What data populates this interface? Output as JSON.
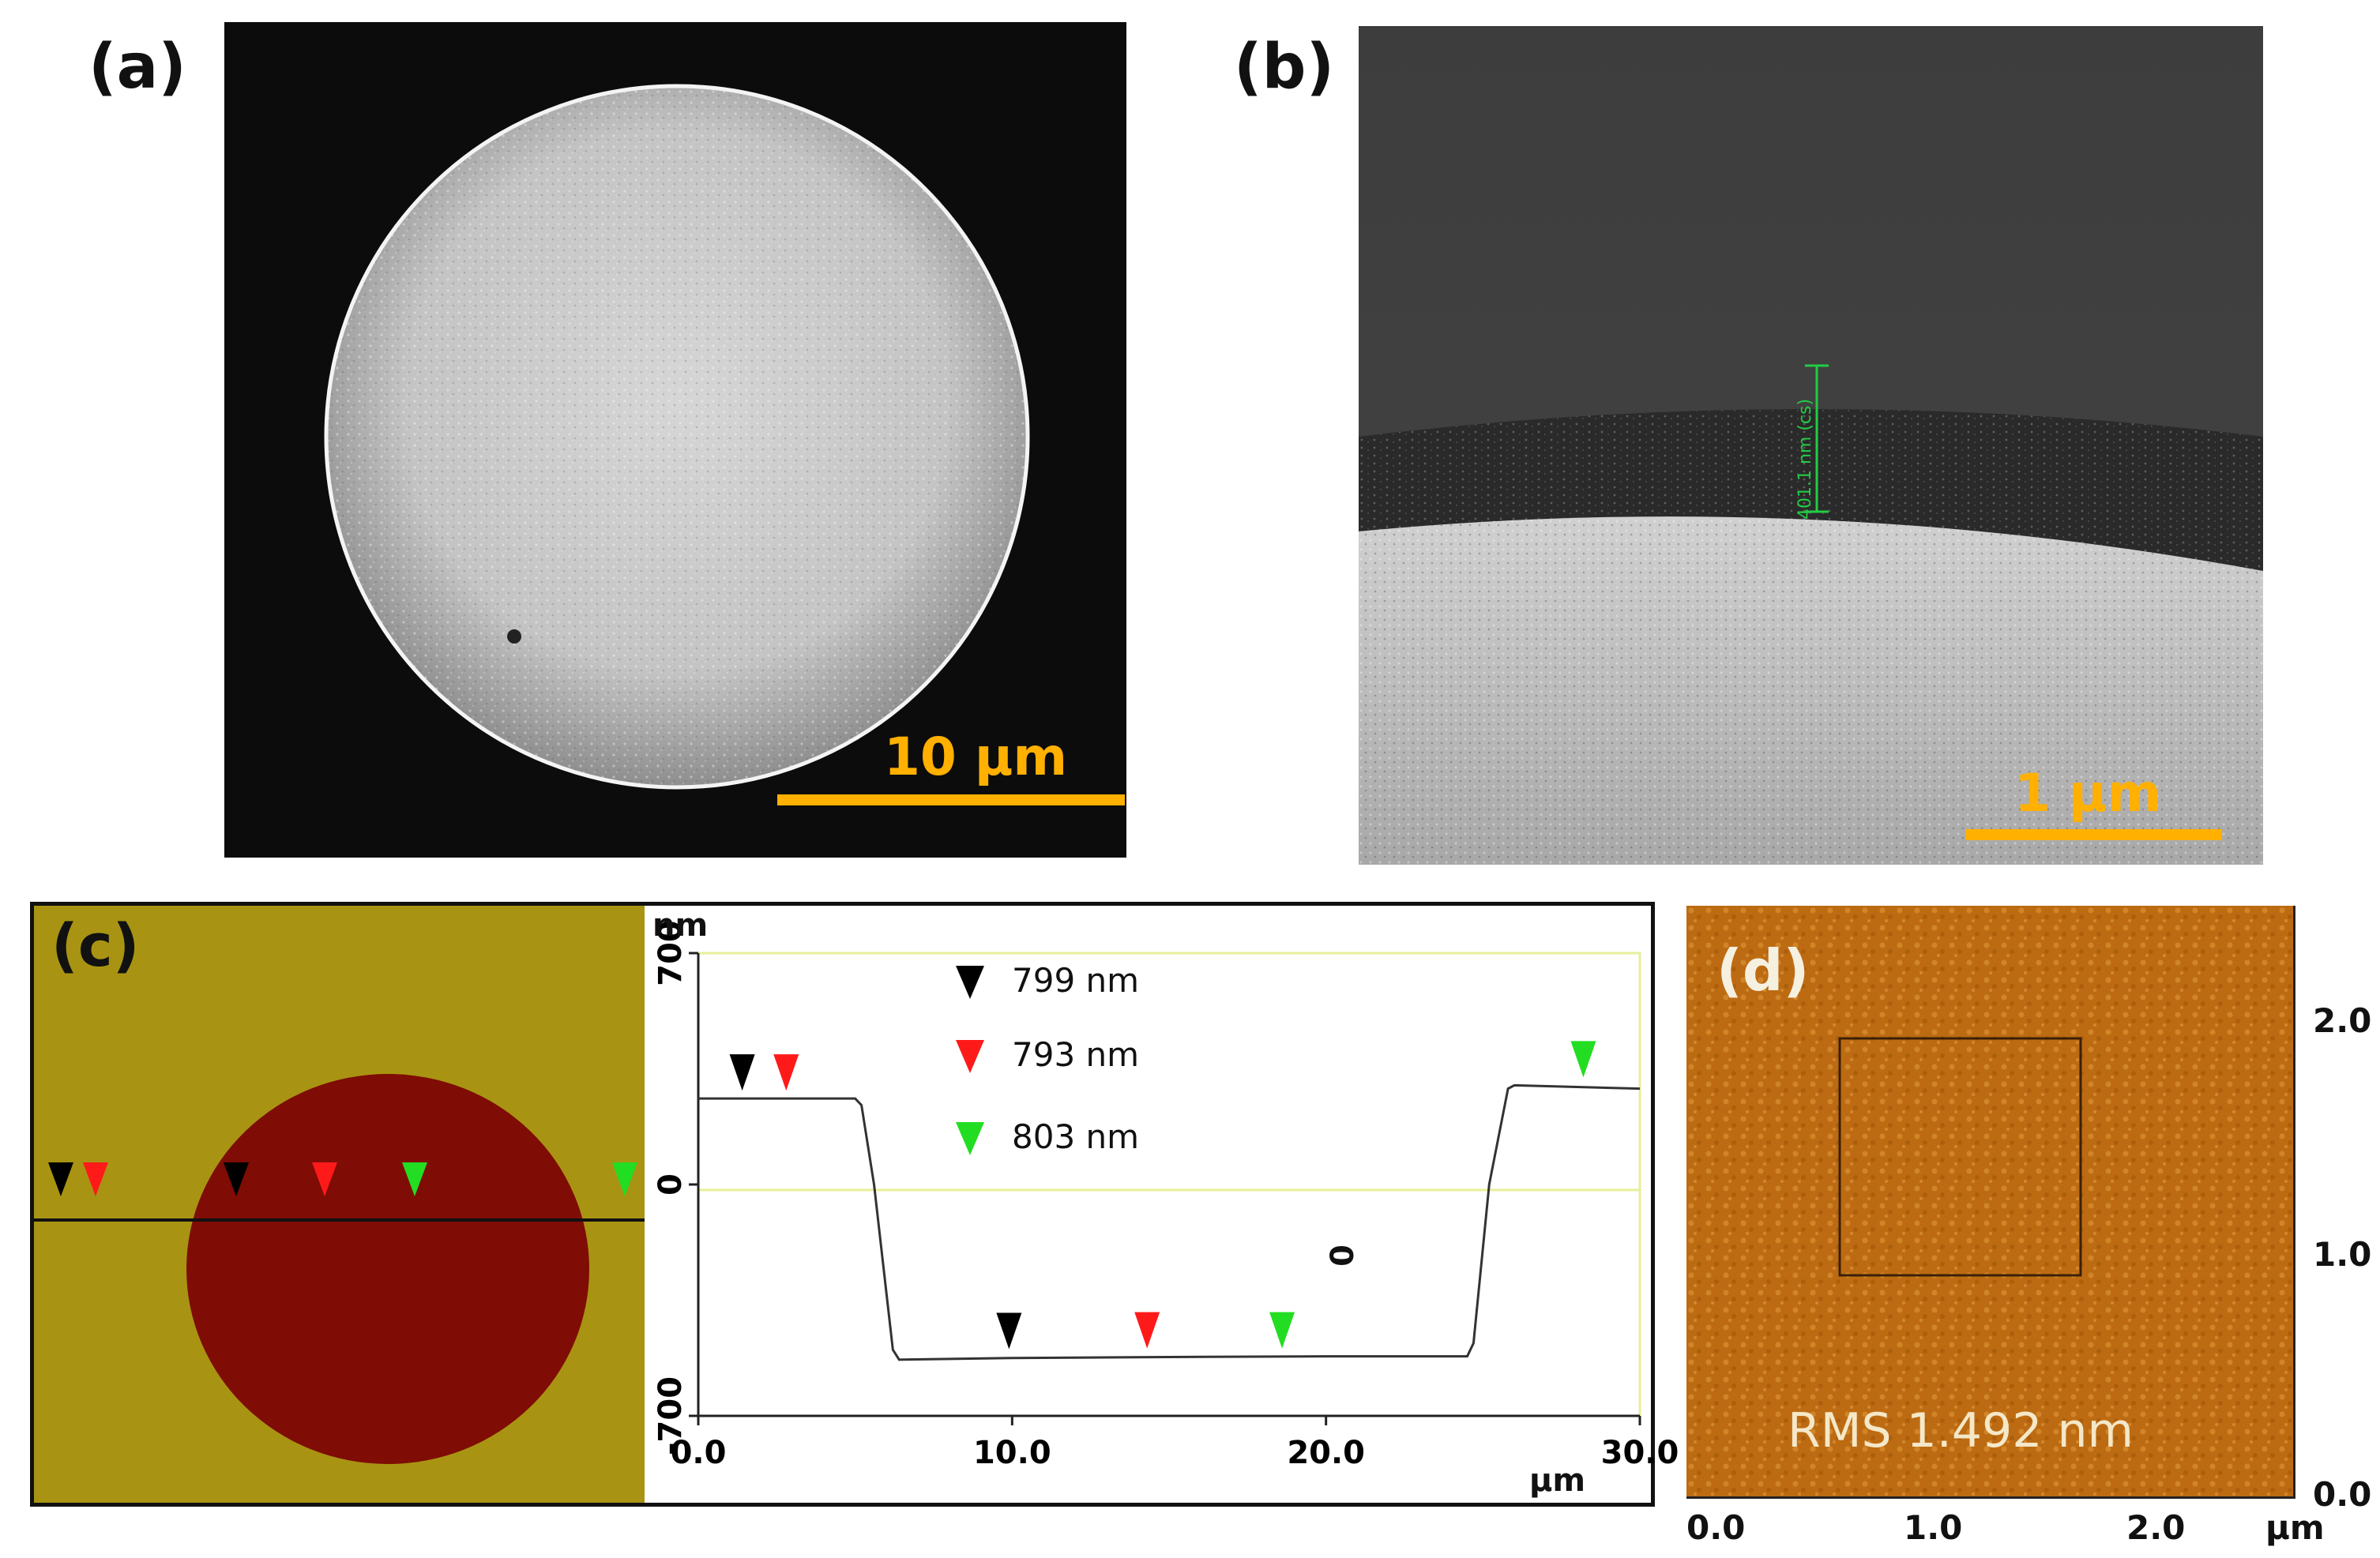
{
  "panels": {
    "a": {
      "label": "(a)",
      "scale_label": "10 µm"
    },
    "b": {
      "label": "(b)",
      "scale_label": "1 µm",
      "measure_label": "401.1 nm (cs)"
    },
    "c": {
      "label": "(c)",
      "legend": [
        {
          "text": "799 nm",
          "color": "#000000"
        },
        {
          "text": "793 nm",
          "color": "#ff1a1a"
        },
        {
          "text": "803 nm",
          "color": "#22dd22"
        }
      ],
      "center_zero": "0",
      "chart_data": {
        "type": "line",
        "x_label": "µm",
        "y_label": "nm",
        "x_ticks": [
          "0.0",
          "10.0",
          "20.0",
          "30.0"
        ],
        "y_ticks": [
          "700",
          "0",
          "-700"
        ],
        "xlim": [
          0,
          30
        ],
        "ylim": [
          -700,
          700
        ],
        "series": [
          {
            "x": [
              0,
              5.0,
              5.2,
              5.6,
              6.2,
              6.4,
              10,
              15,
              20,
              24.5,
              24.7,
              25.2,
              25.8,
              26,
              30
            ],
            "y": [
              260,
              260,
              240,
              0,
              -500,
              -530,
              -525,
              -522,
              -520,
              -520,
              -480,
              0,
              290,
              300,
              290
            ]
          }
        ],
        "markers": [
          {
            "x": 1.4,
            "y": 260,
            "color": "#000000"
          },
          {
            "x": 2.8,
            "y": 260,
            "color": "#ff1a1a"
          },
          {
            "x": 9.9,
            "y": -522,
            "color": "#000000"
          },
          {
            "x": 14.3,
            "y": -520,
            "color": "#ff1a1a"
          },
          {
            "x": 18.6,
            "y": -520,
            "color": "#22dd22"
          },
          {
            "x": 28.2,
            "y": 300,
            "color": "#22dd22"
          }
        ]
      }
    },
    "d": {
      "label": "(d)",
      "rms_label": "RMS 1.492 nm",
      "x_ticks": [
        "0.0",
        "1.0",
        "2.0"
      ],
      "y_ticks": [
        "2.0",
        "1.0",
        "0.0"
      ],
      "x_unit": "µm"
    }
  }
}
